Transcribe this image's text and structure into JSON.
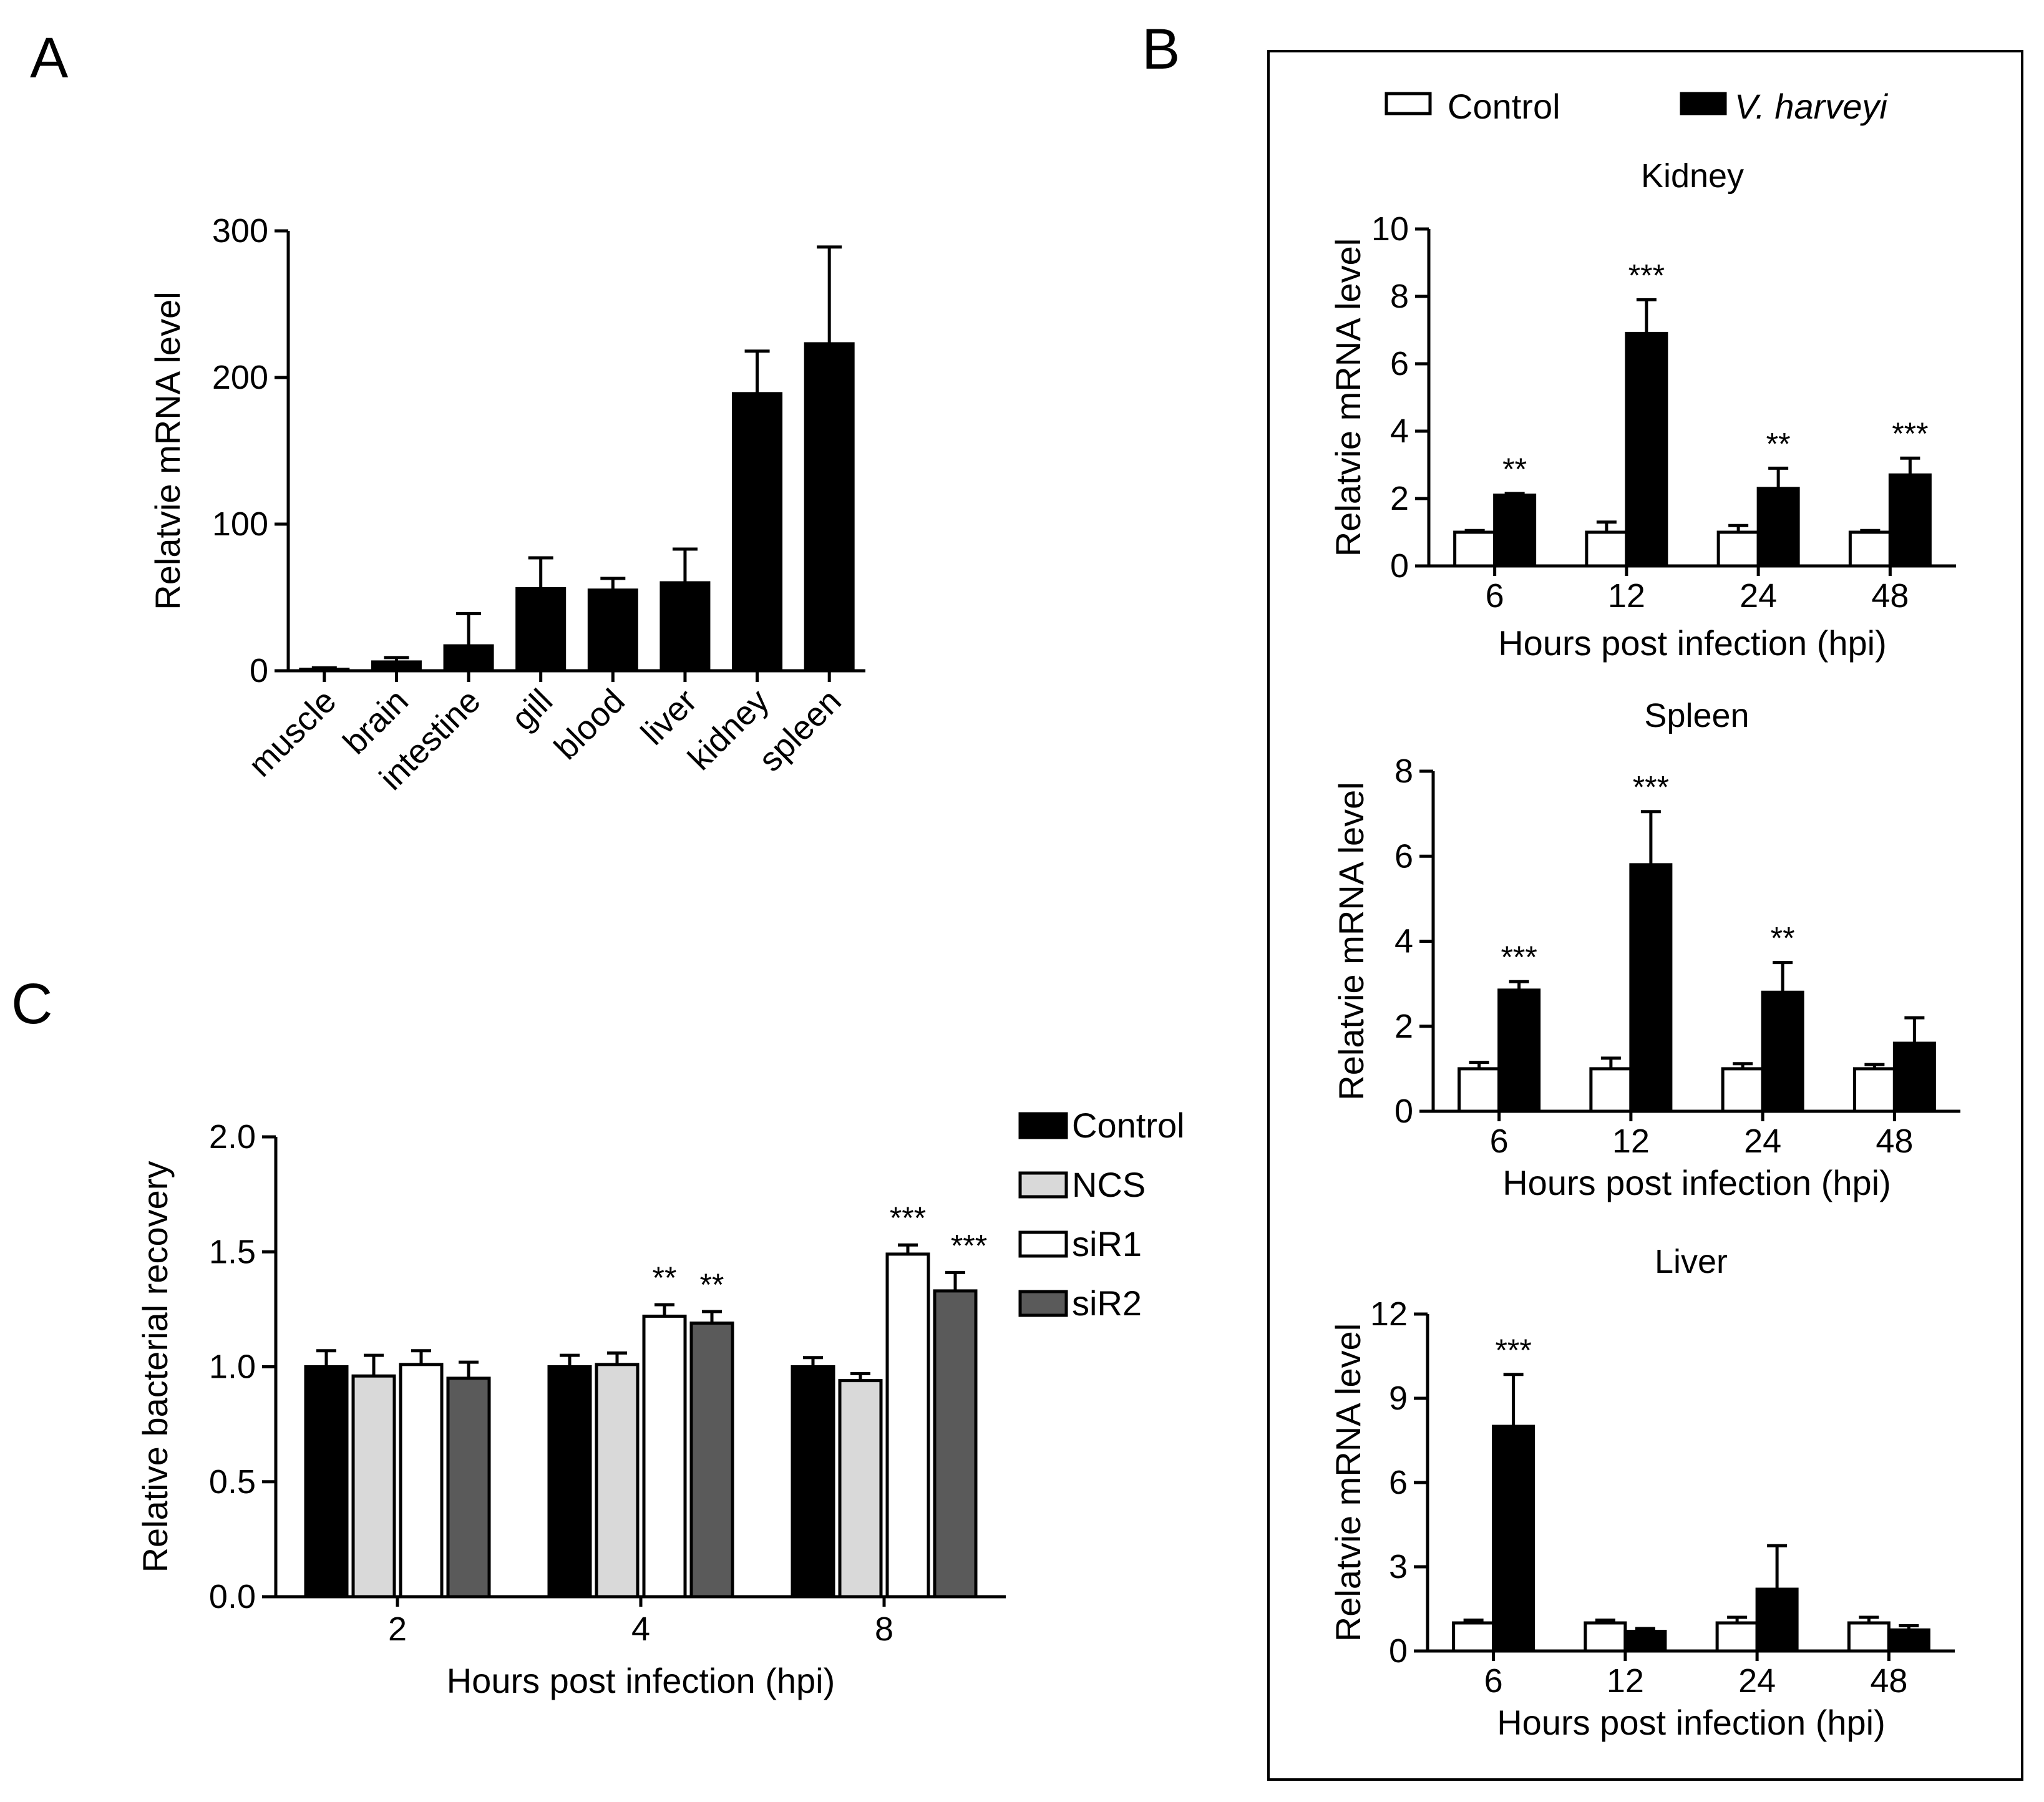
{
  "panels": {
    "a": "A",
    "b": "B",
    "c": "C"
  },
  "chart_data": [
    {
      "panel": "A",
      "type": "bar",
      "title": "",
      "xlabel": "",
      "ylabel": "Relatvie mRNA level",
      "categories": [
        "muscle",
        "brain",
        "intestine",
        "gill",
        "blood",
        "liver",
        "kidney",
        "spleen"
      ],
      "values": [
        1,
        6,
        17,
        56,
        55,
        60,
        189,
        223
      ],
      "errors": [
        1,
        3,
        22,
        21,
        8,
        23,
        29,
        66
      ],
      "ylim": [
        0,
        300
      ],
      "yticks": [
        0,
        100,
        200,
        300
      ],
      "color": "#000000"
    },
    {
      "panel": "B",
      "type": "bar",
      "title": "Kidney",
      "xlabel": "Hours post infection (hpi)",
      "ylabel": "Relatvie mRNA level",
      "categories": [
        "6",
        "12",
        "24",
        "48"
      ],
      "series": [
        {
          "name": "Control",
          "values": [
            1.0,
            1.0,
            1.0,
            1.0
          ],
          "errors": [
            0.05,
            0.3,
            0.2,
            0.05
          ]
        },
        {
          "name": "V. harveyi",
          "values": [
            2.1,
            6.9,
            2.3,
            2.7
          ],
          "errors": [
            0.05,
            1.0,
            0.6,
            0.5
          ]
        }
      ],
      "significance": [
        "**",
        "***",
        "**",
        "***"
      ],
      "ylim": [
        0,
        10
      ],
      "yticks": [
        0,
        2,
        4,
        6,
        8,
        10
      ]
    },
    {
      "panel": "B",
      "type": "bar",
      "title": "Spleen",
      "xlabel": "Hours post infection (hpi)",
      "ylabel": "Relatvie mRNA level",
      "categories": [
        "6",
        "12",
        "24",
        "48"
      ],
      "series": [
        {
          "name": "Control",
          "values": [
            1.0,
            1.0,
            1.0,
            1.0
          ],
          "errors": [
            0.15,
            0.25,
            0.12,
            0.1
          ]
        },
        {
          "name": "V. harveyi",
          "values": [
            2.85,
            5.8,
            2.8,
            1.6
          ],
          "errors": [
            0.2,
            1.25,
            0.7,
            0.6
          ]
        }
      ],
      "significance": [
        "***",
        "***",
        "**",
        ""
      ],
      "ylim": [
        0,
        8
      ],
      "yticks": [
        0,
        2,
        4,
        6,
        8
      ]
    },
    {
      "panel": "B",
      "type": "bar",
      "title": "Liver",
      "xlabel": "Hours post infection (hpi)",
      "ylabel": "Relatvie mRNA level",
      "categories": [
        "6",
        "12",
        "24",
        "48"
      ],
      "series": [
        {
          "name": "Control",
          "values": [
            1.0,
            1.0,
            1.0,
            1.0
          ],
          "errors": [
            0.1,
            0.1,
            0.2,
            0.2
          ]
        },
        {
          "name": "V. harveyi",
          "values": [
            8.0,
            0.7,
            2.2,
            0.75
          ],
          "errors": [
            1.85,
            0.1,
            1.55,
            0.15
          ]
        }
      ],
      "significance": [
        "***",
        "",
        "",
        ""
      ],
      "ylim": [
        0,
        12
      ],
      "yticks": [
        0,
        3,
        6,
        9,
        12
      ]
    },
    {
      "panel": "C",
      "type": "bar",
      "title": "",
      "xlabel": "Hours post infection (hpi)",
      "ylabel": "Relative bacterial recovery",
      "categories": [
        "2",
        "4",
        "8"
      ],
      "series": [
        {
          "name": "Control",
          "values": [
            1.0,
            1.0,
            1.0
          ],
          "errors": [
            0.07,
            0.05,
            0.04
          ]
        },
        {
          "name": "NCS",
          "values": [
            0.96,
            1.01,
            0.94
          ],
          "errors": [
            0.09,
            0.05,
            0.03
          ]
        },
        {
          "name": "siR1",
          "values": [
            1.01,
            1.22,
            1.49
          ],
          "errors": [
            0.06,
            0.05,
            0.04
          ]
        },
        {
          "name": "siR2",
          "values": [
            0.95,
            1.19,
            1.33
          ],
          "errors": [
            0.07,
            0.05,
            0.08
          ]
        }
      ],
      "significance": [
        [
          "",
          "",
          "",
          ""
        ],
        [
          "",
          "",
          "**",
          "**"
        ],
        [
          "",
          "",
          "***",
          "***"
        ]
      ],
      "ylim": [
        0,
        2.0
      ],
      "yticks": [
        "0.0",
        "0.5",
        "1.0",
        "1.5",
        "2.0"
      ]
    }
  ],
  "colors": {
    "bar_black": "#000000",
    "bar_white": "#ffffff",
    "ncs_gray": "#d9d9d9",
    "sir2_gray": "#5a5a5a"
  }
}
